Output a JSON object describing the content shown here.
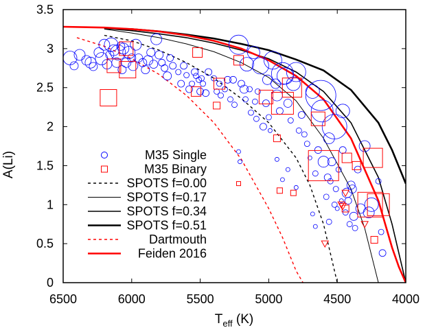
{
  "chart_data": {
    "type": "scatter",
    "xlabel_main": "T",
    "xlabel_sub": "eff",
    "xlabel_unit": " (K)",
    "ylabel": "A(Li)",
    "xlim": [
      6500,
      4000
    ],
    "ylim": [
      0,
      3.5
    ],
    "x_ticks": [
      "6500",
      "6000",
      "5500",
      "5000",
      "4500",
      "4000"
    ],
    "y_ticks": [
      "0",
      "0.5",
      "1",
      "1.5",
      "2",
      "2.5",
      "3",
      "3.5"
    ],
    "legend_position": "lower-left",
    "legend": [
      {
        "label": "M35 Single",
        "style": "circle",
        "color": "#0000ff"
      },
      {
        "label": "M35 Binary",
        "style": "square",
        "color": "#ff0000"
      },
      {
        "label": "SPOTS f=0.00",
        "style": "dashed",
        "color": "#000000"
      },
      {
        "label": "SPOTS f=0.17",
        "style": "thin",
        "color": "#000000"
      },
      {
        "label": "SPOTS f=0.34",
        "style": "medium",
        "color": "#000000"
      },
      {
        "label": "SPOTS f=0.51",
        "style": "thick",
        "color": "#000000"
      },
      {
        "label": "Dartmouth",
        "style": "dashed",
        "color": "#ff0000"
      },
      {
        "label": "Feiden 2016",
        "style": "thick",
        "color": "#ff0000"
      }
    ],
    "series": [
      {
        "name": "SPOTS f=0.00",
        "style": "dashed",
        "color": "#000000",
        "x": [
          6200,
          6000,
          5800,
          5600,
          5400,
          5200,
          5000,
          4800,
          4700,
          4600,
          4500
        ],
        "y": [
          3.17,
          3.1,
          2.98,
          2.82,
          2.62,
          2.36,
          2.05,
          1.6,
          1.25,
          0.75,
          0
        ]
      },
      {
        "name": "SPOTS f=0.17",
        "style": "thin",
        "color": "#000000",
        "x": [
          6200,
          6000,
          5800,
          5600,
          5400,
          5200,
          5000,
          4800,
          4600,
          4400,
          4300,
          4200
        ],
        "y": [
          3.25,
          3.2,
          3.14,
          3.06,
          2.96,
          2.82,
          2.63,
          2.33,
          1.85,
          1.2,
          0.7,
          0
        ]
      },
      {
        "name": "SPOTS f=0.34",
        "style": "medium",
        "color": "#000000",
        "x": [
          6200,
          6000,
          5800,
          5600,
          5400,
          5200,
          5000,
          4800,
          4600,
          4400,
          4200,
          4100,
          4000
        ],
        "y": [
          3.26,
          3.23,
          3.19,
          3.14,
          3.07,
          2.98,
          2.87,
          2.7,
          2.45,
          2.05,
          1.35,
          0.75,
          0
        ]
      },
      {
        "name": "SPOTS f=0.51",
        "style": "thick",
        "color": "#000000",
        "x": [
          6200,
          6000,
          5800,
          5600,
          5400,
          5200,
          5000,
          4800,
          4600,
          4400,
          4200,
          4100,
          4000
        ],
        "y": [
          3.26,
          3.25,
          3.22,
          3.18,
          3.13,
          3.06,
          2.98,
          2.86,
          2.72,
          2.47,
          2.05,
          1.7,
          1.27
        ]
      },
      {
        "name": "Dartmouth",
        "style": "dashed",
        "color": "#ff0000",
        "x": [
          6400,
          6200,
          6000,
          5800,
          5600,
          5400,
          5200,
          5000,
          4900,
          4800,
          4750
        ],
        "y": [
          3.14,
          3.03,
          2.87,
          2.67,
          2.4,
          2.05,
          1.58,
          0.95,
          0.58,
          0.15,
          0
        ]
      },
      {
        "name": "Feiden 2016",
        "style": "thick",
        "color": "#ff0000",
        "x": [
          6500,
          6200,
          6000,
          5800,
          5600,
          5400,
          5200,
          5000,
          4800,
          4600,
          4400,
          4200,
          4100,
          4050,
          4000
        ],
        "y": [
          3.28,
          3.27,
          3.25,
          3.22,
          3.17,
          3.1,
          3.0,
          2.85,
          2.65,
          2.35,
          1.85,
          1.05,
          0.45,
          0.2,
          0
        ]
      }
    ],
    "single_points": [
      [
        6450,
        2.88,
        10
      ],
      [
        6420,
        2.78,
        6
      ],
      [
        6380,
        2.92,
        8
      ],
      [
        6330,
        2.85,
        7
      ],
      [
        6300,
        2.82,
        8
      ],
      [
        6280,
        2.77,
        6
      ],
      [
        6240,
        2.95,
        7
      ],
      [
        6220,
        2.87,
        9
      ],
      [
        6200,
        3.05,
        8
      ],
      [
        6180,
        2.8,
        7
      ],
      [
        6160,
        2.92,
        6
      ],
      [
        6150,
        3.05,
        10
      ],
      [
        6130,
        2.98,
        8
      ],
      [
        6110,
        2.82,
        7
      ],
      [
        6100,
        2.95,
        11
      ],
      [
        6080,
        3.03,
        6
      ],
      [
        6070,
        2.73,
        6
      ],
      [
        6060,
        3.0,
        8
      ],
      [
        6040,
        2.82,
        7
      ],
      [
        6020,
        2.95,
        9
      ],
      [
        6000,
        2.88,
        6
      ],
      [
        5990,
        2.78,
        7
      ],
      [
        5970,
        3.05,
        8
      ],
      [
        5950,
        2.88,
        6
      ],
      [
        5920,
        2.82,
        6
      ],
      [
        5900,
        2.73,
        6
      ],
      [
        5880,
        2.85,
        7
      ],
      [
        5860,
        2.95,
        6
      ],
      [
        5840,
        2.8,
        6
      ],
      [
        5820,
        3.12,
        8
      ],
      [
        5800,
        2.92,
        6
      ],
      [
        5780,
        2.82,
        5
      ],
      [
        5760,
        2.75,
        5
      ],
      [
        5740,
        2.65,
        6
      ],
      [
        5720,
        2.88,
        5
      ],
      [
        5700,
        2.78,
        5
      ],
      [
        5660,
        2.7,
        4
      ],
      [
        5640,
        2.55,
        5
      ],
      [
        5620,
        2.78,
        5
      ],
      [
        5600,
        2.66,
        4
      ],
      [
        5580,
        2.48,
        5
      ],
      [
        5560,
        2.55,
        4
      ],
      [
        5540,
        2.7,
        5
      ],
      [
        5530,
        2.65,
        4
      ],
      [
        5510,
        2.6,
        4
      ],
      [
        5500,
        2.45,
        5
      ],
      [
        5490,
        2.62,
        4
      ],
      [
        5480,
        2.55,
        4
      ],
      [
        5460,
        2.43,
        5
      ],
      [
        5440,
        2.7,
        5
      ],
      [
        5400,
        2.62,
        4
      ],
      [
        5380,
        2.45,
        4
      ],
      [
        5360,
        2.55,
        4
      ],
      [
        5350,
        2.4,
        4
      ],
      [
        5320,
        2.48,
        4
      ],
      [
        5300,
        2.6,
        5
      ],
      [
        5280,
        2.35,
        4
      ],
      [
        5260,
        2.6,
        5
      ],
      [
        5250,
        2.28,
        4
      ],
      [
        5220,
        3.05,
        14
      ],
      [
        5200,
        2.55,
        5
      ],
      [
        5180,
        2.48,
        6
      ],
      [
        5170,
        2.35,
        4
      ],
      [
        5160,
        2.8,
        10
      ],
      [
        5140,
        2.48,
        4
      ],
      [
        5130,
        2.18,
        4
      ],
      [
        5110,
        2.95,
        9
      ],
      [
        5100,
        2.32,
        4
      ],
      [
        5090,
        2.1,
        4
      ],
      [
        5080,
        2.45,
        4
      ],
      [
        5060,
        2.78,
        12
      ],
      [
        5040,
        2.0,
        5
      ],
      [
        5020,
        2.3,
        5
      ],
      [
        5010,
        2.6,
        7
      ],
      [
        5000,
        2.12,
        4
      ],
      [
        4990,
        1.95,
        3
      ],
      [
        4970,
        2.85,
        13
      ],
      [
        4950,
        2.55,
        7
      ],
      [
        4940,
        2.4,
        8
      ],
      [
        4920,
        2.2,
        5
      ],
      [
        4900,
        2.68,
        16
      ],
      [
        4880,
        2.65,
        12
      ],
      [
        4860,
        2.3,
        6
      ],
      [
        4840,
        2.08,
        4
      ],
      [
        4820,
        2.55,
        10
      ],
      [
        4800,
        2.7,
        14
      ],
      [
        4780,
        1.95,
        4
      ],
      [
        4760,
        2.15,
        5
      ],
      [
        4740,
        1.9,
        4
      ],
      [
        4720,
        1.78,
        4
      ],
      [
        4700,
        1.6,
        3
      ],
      [
        4680,
        2.45,
        10
      ],
      [
        4660,
        1.4,
        4
      ],
      [
        4640,
        1.7,
        5
      ],
      [
        4620,
        2.4,
        22
      ],
      [
        4610,
        2.2,
        16
      ],
      [
        4600,
        1.55,
        8
      ],
      [
        4580,
        1.1,
        4
      ],
      [
        4570,
        1.35,
        5
      ],
      [
        4560,
        1.85,
        8
      ],
      [
        4550,
        1.3,
        4
      ],
      [
        4540,
        1.55,
        6
      ],
      [
        4520,
        1.0,
        4
      ],
      [
        4510,
        1.2,
        4
      ],
      [
        4500,
        0.95,
        3
      ],
      [
        4490,
        1.45,
        4
      ],
      [
        4470,
        1.05,
        3
      ],
      [
        4460,
        1.7,
        5
      ],
      [
        4440,
        0.9,
        4
      ],
      [
        4430,
        1.15,
        7
      ],
      [
        4420,
        1.05,
        5
      ],
      [
        4410,
        0.75,
        4
      ],
      [
        4390,
        1.2,
        6
      ],
      [
        4370,
        0.7,
        4
      ],
      [
        4350,
        1.45,
        5
      ],
      [
        4330,
        0.95,
        7
      ],
      [
        4300,
        1.75,
        8
      ],
      [
        4270,
        0.9,
        8
      ],
      [
        4250,
        1.0,
        10
      ],
      [
        4200,
        1.3,
        4
      ],
      [
        4180,
        0.65,
        4
      ],
      [
        4170,
        0.38,
        5
      ],
      [
        4460,
        2.2,
        10
      ],
      [
        4520,
        2.0,
        18
      ],
      [
        4400,
        1.25,
        6
      ],
      [
        4380,
        0.85,
        6
      ],
      [
        4560,
        0.78,
        4
      ],
      [
        4660,
        0.72,
        3
      ],
      [
        4680,
        0.88,
        3
      ],
      [
        5220,
        1.68,
        3
      ],
      [
        5210,
        1.55,
        3
      ],
      [
        4860,
        1.45,
        3
      ],
      [
        4800,
        1.22,
        3
      ],
      [
        4900,
        1.32,
        3
      ],
      [
        4940,
        1.58,
        3
      ]
    ],
    "binary_points": [
      [
        6130,
        2.78,
        10
      ],
      [
        6040,
        3.0,
        10
      ],
      [
        6030,
        2.73,
        12
      ],
      [
        6170,
        2.37,
        12
      ],
      [
        5520,
        2.95,
        7
      ],
      [
        5530,
        2.45,
        7
      ],
      [
        5360,
        2.55,
        8
      ],
      [
        5220,
        2.85,
        7
      ],
      [
        5380,
        2.27,
        5
      ],
      [
        5020,
        2.38,
        10
      ],
      [
        4900,
        2.3,
        16
      ],
      [
        4830,
        2.5,
        14
      ],
      [
        4940,
        1.85,
        5
      ],
      [
        4640,
        2.1,
        10
      ],
      [
        4600,
        1.5,
        22
      ],
      [
        4430,
        1.6,
        7
      ],
      [
        4360,
        1.5,
        6
      ],
      [
        4240,
        1.6,
        14
      ],
      [
        4260,
        1.0,
        18
      ],
      [
        4200,
        1.0,
        16
      ],
      [
        4440,
        0.95,
        5
      ],
      [
        4230,
        0.55,
        5
      ],
      [
        4820,
        1.15,
        4
      ],
      [
        4920,
        1.18,
        4
      ],
      [
        5220,
        1.27,
        3
      ]
    ],
    "binary_triangles": [
      [
        4440,
        1.15
      ],
      [
        4470,
        1.0
      ],
      [
        4460,
        0.98
      ],
      [
        4300,
        0.75
      ],
      [
        4590,
        0.5
      ]
    ]
  }
}
